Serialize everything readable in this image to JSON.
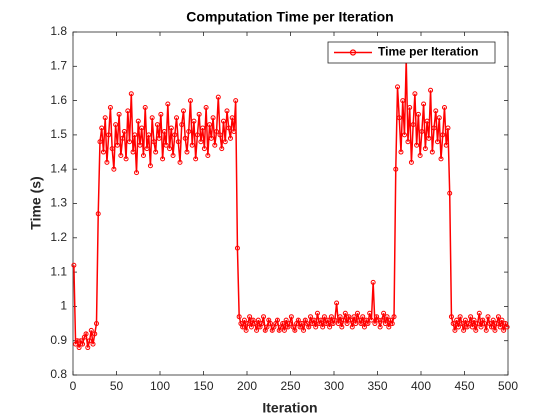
{
  "chart_data": {
    "type": "line",
    "title": "Computation Time per Iteration",
    "xlabel": "Iteration",
    "ylabel": "Time (s)",
    "xlim": [
      0,
      500
    ],
    "xticks": [
      0,
      50,
      100,
      150,
      200,
      250,
      300,
      350,
      400,
      450,
      500
    ],
    "ylim": [
      0.8,
      1.8
    ],
    "yticks": [
      0.8,
      0.9,
      1,
      1.1,
      1.2,
      1.3,
      1.4,
      1.5,
      1.6,
      1.7,
      1.8
    ],
    "legend": "northeast",
    "grid": false,
    "x": [
      1,
      3,
      5,
      7,
      9,
      11,
      13,
      15,
      17,
      19,
      21,
      23,
      25,
      27,
      29,
      31,
      33,
      35,
      37,
      39,
      41,
      43,
      45,
      47,
      49,
      51,
      53,
      55,
      57,
      59,
      61,
      63,
      65,
      67,
      69,
      71,
      73,
      75,
      77,
      79,
      81,
      83,
      85,
      87,
      89,
      91,
      93,
      95,
      97,
      99,
      101,
      103,
      105,
      107,
      109,
      111,
      113,
      115,
      117,
      119,
      121,
      123,
      125,
      127,
      129,
      131,
      133,
      135,
      137,
      139,
      141,
      143,
      145,
      147,
      149,
      151,
      153,
      155,
      157,
      159,
      161,
      163,
      165,
      167,
      169,
      171,
      173,
      175,
      177,
      179,
      181,
      183,
      185,
      187,
      189,
      191,
      193,
      195,
      197,
      199,
      201,
      203,
      205,
      207,
      209,
      211,
      213,
      215,
      217,
      219,
      221,
      223,
      225,
      227,
      229,
      231,
      233,
      235,
      237,
      239,
      241,
      243,
      245,
      247,
      249,
      251,
      253,
      255,
      257,
      259,
      261,
      263,
      265,
      267,
      269,
      271,
      273,
      275,
      277,
      279,
      281,
      283,
      285,
      287,
      289,
      291,
      293,
      295,
      297,
      299,
      301,
      303,
      305,
      307,
      309,
      311,
      313,
      315,
      317,
      319,
      321,
      323,
      325,
      327,
      329,
      331,
      333,
      335,
      337,
      339,
      341,
      343,
      345,
      347,
      349,
      351,
      353,
      355,
      357,
      359,
      361,
      363,
      365,
      367,
      369,
      371,
      373,
      375,
      377,
      379,
      381,
      383,
      385,
      387,
      389,
      391,
      393,
      395,
      397,
      399,
      401,
      403,
      405,
      407,
      409,
      411,
      413,
      415,
      417,
      419,
      421,
      423,
      425,
      427,
      429,
      431,
      433,
      435,
      437,
      439,
      441,
      443,
      445,
      447,
      449,
      451,
      453,
      455,
      457,
      459,
      461,
      463,
      465,
      467,
      469,
      471,
      473,
      475,
      477,
      479,
      481,
      483,
      485,
      487,
      489,
      491,
      493,
      495,
      497,
      499
    ],
    "series": [
      {
        "name": "Time per Iteration",
        "color": "#ff0000",
        "values": [
          1.12,
          0.89,
          0.9,
          0.88,
          0.9,
          0.89,
          0.91,
          0.92,
          0.88,
          0.9,
          0.93,
          0.89,
          0.92,
          0.95,
          1.27,
          1.48,
          1.52,
          1.45,
          1.55,
          1.42,
          1.5,
          1.58,
          1.46,
          1.4,
          1.53,
          1.47,
          1.56,
          1.44,
          1.49,
          1.51,
          1.43,
          1.57,
          1.48,
          1.62,
          1.45,
          1.5,
          1.39,
          1.54,
          1.47,
          1.52,
          1.44,
          1.58,
          1.46,
          1.5,
          1.41,
          1.55,
          1.48,
          1.45,
          1.53,
          1.49,
          1.56,
          1.43,
          1.51,
          1.47,
          1.59,
          1.46,
          1.52,
          1.44,
          1.5,
          1.55,
          1.48,
          1.42,
          1.53,
          1.57,
          1.49,
          1.45,
          1.51,
          1.6,
          1.47,
          1.54,
          1.43,
          1.5,
          1.56,
          1.48,
          1.52,
          1.46,
          1.58,
          1.44,
          1.53,
          1.49,
          1.55,
          1.47,
          1.51,
          1.61,
          1.5,
          1.46,
          1.54,
          1.48,
          1.57,
          1.52,
          1.49,
          1.55,
          1.51,
          1.6,
          1.17,
          0.97,
          0.95,
          0.94,
          0.96,
          0.93,
          0.95,
          0.97,
          0.94,
          0.96,
          0.95,
          0.93,
          0.96,
          0.94,
          0.95,
          0.97,
          0.93,
          0.94,
          0.96,
          0.95,
          0.93,
          0.94,
          0.95,
          0.96,
          0.93,
          0.94,
          0.95,
          0.93,
          0.96,
          0.94,
          0.95,
          0.97,
          0.94,
          0.93,
          0.95,
          0.96,
          0.94,
          0.95,
          0.93,
          0.96,
          0.95,
          0.94,
          0.97,
          0.95,
          0.96,
          0.94,
          0.98,
          0.95,
          0.96,
          0.94,
          0.97,
          0.95,
          0.96,
          0.94,
          0.97,
          0.95,
          0.96,
          1.01,
          0.95,
          0.97,
          0.94,
          0.96,
          0.98,
          0.95,
          0.97,
          0.96,
          0.94,
          0.97,
          0.95,
          0.98,
          0.96,
          0.95,
          0.97,
          0.94,
          0.96,
          0.95,
          0.98,
          0.96,
          1.07,
          0.95,
          0.97,
          0.96,
          0.94,
          0.96,
          0.98,
          0.95,
          0.97,
          0.94,
          0.96,
          0.95,
          0.97,
          1.4,
          1.64,
          1.55,
          1.45,
          1.6,
          1.5,
          1.72,
          1.48,
          1.58,
          1.42,
          1.53,
          1.62,
          1.47,
          1.56,
          1.44,
          1.51,
          1.59,
          1.46,
          1.54,
          1.49,
          1.63,
          1.45,
          1.52,
          1.57,
          1.48,
          1.55,
          1.43,
          1.5,
          1.58,
          1.47,
          1.52,
          1.33,
          0.97,
          0.95,
          0.93,
          0.96,
          0.94,
          0.97,
          0.95,
          0.93,
          0.96,
          0.94,
          0.95,
          0.97,
          0.94,
          0.96,
          0.93,
          0.95,
          0.98,
          0.94,
          0.96,
          0.95,
          0.93,
          0.97,
          0.95,
          0.94,
          0.96,
          0.93,
          0.95,
          0.97,
          0.94,
          0.96,
          0.93,
          0.95,
          0.94
        ]
      }
    ]
  }
}
